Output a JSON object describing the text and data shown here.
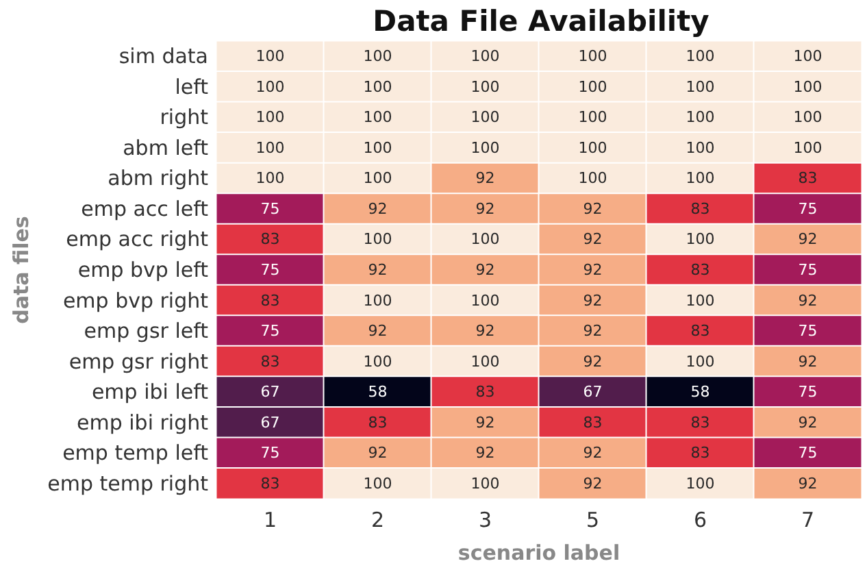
{
  "chart_data": {
    "type": "heatmap",
    "title": "Data File Availability",
    "xlabel": "scenario label",
    "ylabel": "data files",
    "categories": [
      "1",
      "2",
      "3",
      "5",
      "6",
      "7"
    ],
    "y_categories": [
      "sim data",
      "left",
      "right",
      "abm left",
      "abm right",
      "emp acc left",
      "emp acc right",
      "emp bvp left",
      "emp bvp right",
      "emp gsr left",
      "emp gsr right",
      "emp ibi left",
      "emp ibi right",
      "emp temp left",
      "emp temp right"
    ],
    "cells": [
      [
        100,
        100,
        100,
        100,
        100,
        100
      ],
      [
        100,
        100,
        100,
        100,
        100,
        100
      ],
      [
        100,
        100,
        100,
        100,
        100,
        100
      ],
      [
        100,
        100,
        100,
        100,
        100,
        100
      ],
      [
        100,
        100,
        92,
        100,
        100,
        83
      ],
      [
        75,
        92,
        92,
        92,
        83,
        75
      ],
      [
        83,
        100,
        100,
        92,
        100,
        92
      ],
      [
        75,
        92,
        92,
        92,
        83,
        75
      ],
      [
        83,
        100,
        100,
        92,
        100,
        92
      ],
      [
        75,
        92,
        92,
        92,
        83,
        75
      ],
      [
        83,
        100,
        100,
        92,
        100,
        92
      ],
      [
        67,
        58,
        83,
        67,
        58,
        75
      ],
      [
        67,
        83,
        92,
        83,
        83,
        92
      ],
      [
        75,
        92,
        92,
        92,
        83,
        75
      ],
      [
        83,
        100,
        100,
        92,
        100,
        92
      ]
    ],
    "data_labels": true
  }
}
